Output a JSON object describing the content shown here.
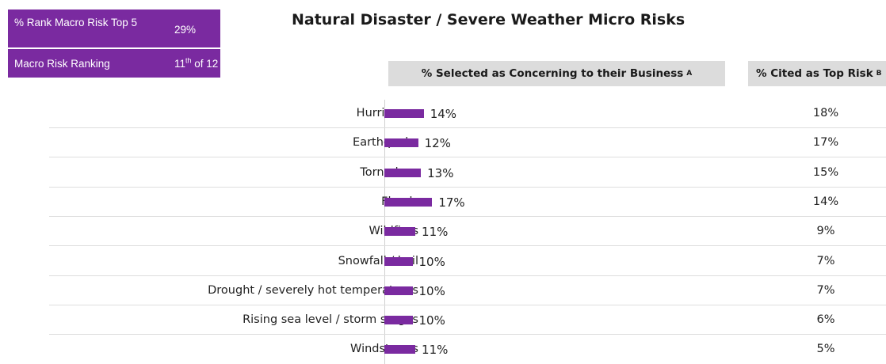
{
  "kpi": {
    "rank_label": "% Rank Macro Risk Top 5",
    "rank_value": "29%",
    "ranking_label": "Macro Risk Ranking",
    "ranking_value_num": "11",
    "ranking_value_sup": "th",
    "ranking_value_rest": " of 12"
  },
  "chart_data": {
    "type": "bar",
    "title": "Natural Disaster / Severe Weather Micro Risks",
    "column_headers": {
      "concerning": "% Selected as Concerning to their Business",
      "concerning_note": "A",
      "top_risk": "% Cited as Top Risk",
      "top_risk_note": "B"
    },
    "categories": [
      "Hurricanes",
      "Earthquake",
      "Tornadoes",
      "Floods",
      "Wildfires",
      "Snowfall / hail",
      "Drought / severely hot temperatures",
      "Rising sea level / storm surges",
      "Windstorms"
    ],
    "series": [
      {
        "values": [
          14,
          12,
          13,
          17,
          11,
          10,
          10,
          10,
          11
        ]
      }
    ],
    "value_labels": [
      "14%",
      "12%",
      "13%",
      "17%",
      "11%",
      "10%",
      "10%",
      "10%",
      "11%"
    ],
    "top_risk_labels": [
      "18%",
      "17%",
      "15%",
      "14%",
      "9%",
      "7%",
      "7%",
      "6%",
      "5%"
    ],
    "top_risk_values": [
      18,
      17,
      15,
      14,
      9,
      7,
      7,
      6,
      5
    ],
    "colors": {
      "bar": "#7a2aa0"
    }
  }
}
